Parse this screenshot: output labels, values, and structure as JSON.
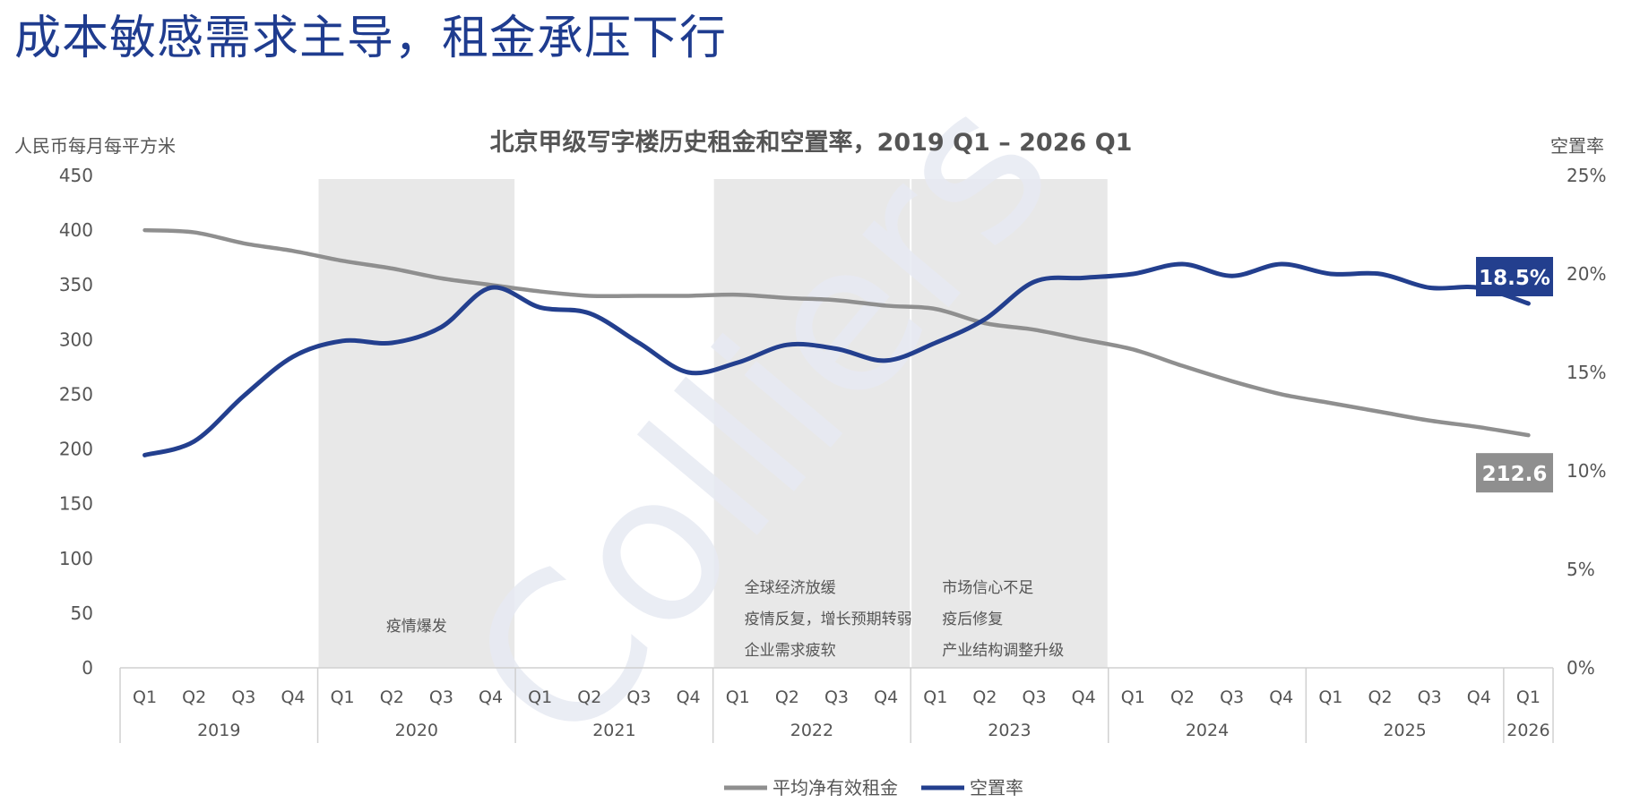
{
  "headline": "成本敏感需求主导，租金承压下行",
  "chart_data": {
    "type": "line",
    "title": "北京甲级写字楼历史租金和空置率，2019 Q1 – 2026 Q1",
    "y_left_label": "人民币每月每平方米",
    "y_right_label": "空置率",
    "y_left_ticks": [
      "0",
      "50",
      "100",
      "150",
      "200",
      "250",
      "300",
      "350",
      "400",
      "450"
    ],
    "y_right_ticks": [
      "0%",
      "5%",
      "10%",
      "15%",
      "20%",
      "25%"
    ],
    "ylim_left": [
      0,
      450
    ],
    "ylim_right": [
      0,
      25
    ],
    "quarters": [
      "Q1",
      "Q2",
      "Q3",
      "Q4",
      "Q1",
      "Q2",
      "Q3",
      "Q4",
      "Q1",
      "Q2",
      "Q3",
      "Q4",
      "Q1",
      "Q2",
      "Q3",
      "Q4",
      "Q1",
      "Q2",
      "Q3",
      "Q4",
      "Q1",
      "Q2",
      "Q3",
      "Q4",
      "Q1",
      "Q2",
      "Q3",
      "Q4",
      "Q1"
    ],
    "years": [
      {
        "label": "2019",
        "span": 4
      },
      {
        "label": "2020",
        "span": 4
      },
      {
        "label": "2021",
        "span": 4
      },
      {
        "label": "2022",
        "span": 4
      },
      {
        "label": "2023",
        "span": 4
      },
      {
        "label": "2024",
        "span": 4
      },
      {
        "label": "2025",
        "span": 4
      },
      {
        "label": "2026",
        "span": 1
      }
    ],
    "series": [
      {
        "name": "平均净有效租金",
        "axis": "left",
        "color": "#8f8f8f",
        "values": [
          400,
          398,
          388,
          381,
          372,
          365,
          356,
          350,
          344,
          340,
          340,
          340,
          341,
          338,
          336,
          331,
          328,
          315,
          309,
          300,
          291,
          276,
          262,
          250,
          242,
          234,
          226,
          220,
          212.6
        ],
        "end_label": "212.6"
      },
      {
        "name": "空置率",
        "axis": "right",
        "color": "#233f8e",
        "values": [
          10.8,
          11.5,
          13.8,
          15.8,
          16.6,
          16.5,
          17.3,
          19.3,
          18.3,
          18.0,
          16.5,
          15.0,
          15.5,
          16.4,
          16.2,
          15.6,
          16.5,
          17.7,
          19.6,
          19.8,
          20.0,
          20.5,
          19.9,
          20.5,
          20.0,
          20.0,
          19.3,
          19.3,
          18.5
        ],
        "end_label": "18.5%"
      }
    ],
    "shaded_periods": [
      {
        "from_index": 4,
        "to_index": 7,
        "notes": [
          "疫情爆发"
        ]
      },
      {
        "from_index": 12,
        "to_index": 15,
        "notes": [
          "全球经济放缓",
          "疫情反复，增长预期转弱",
          "企业需求疲软"
        ]
      },
      {
        "from_index": 16,
        "to_index": 19,
        "notes": [
          "市场信心不足",
          "疫后修复",
          "产业结构调整升级"
        ]
      }
    ],
    "legend_position": "bottom-center",
    "watermark": "Colliers"
  },
  "colors": {
    "headline": "#1f3c8f",
    "rent": "#8f8f8f",
    "vacancy": "#233f8e",
    "shade": "#e8e8e8",
    "watermark": "#e7eaf3"
  }
}
